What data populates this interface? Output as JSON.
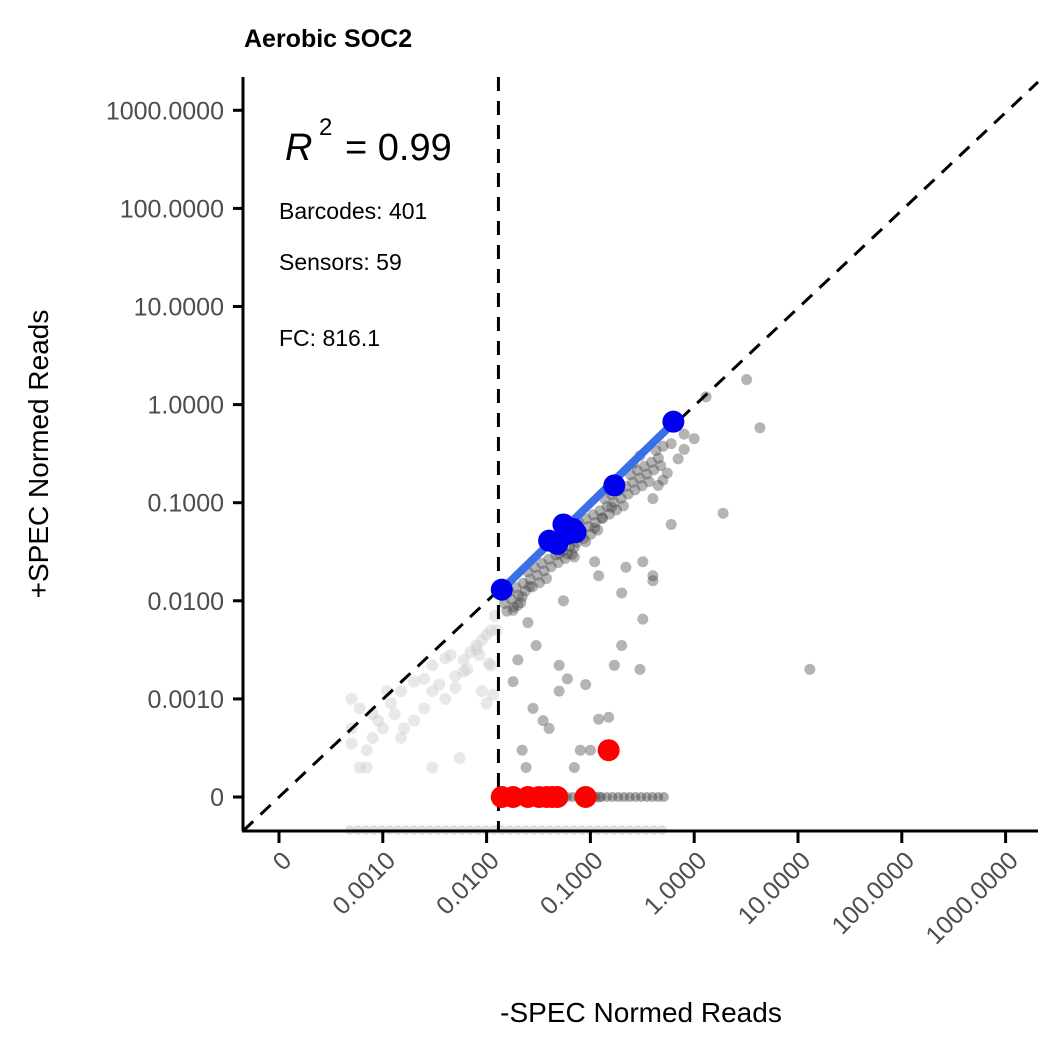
{
  "chart_data": {
    "type": "scatter",
    "title": "Aerobic SOC2",
    "xlabel": "-SPEC Normed Reads",
    "ylabel": "+SPEC Normed Reads",
    "x_scale": "pseudo-log10",
    "y_scale": "pseudo-log10",
    "x_ticks": [
      "0",
      "0.0010",
      "0.0100",
      "0.1000",
      "1.0000",
      "10.0000",
      "100.0000",
      "1000.0000"
    ],
    "y_ticks": [
      "0",
      "0.0010",
      "0.0100",
      "0.1000",
      "1.0000",
      "10.0000",
      "100.0000",
      "1000.0000"
    ],
    "annotations": {
      "r2_symbol": "R",
      "r2_exponent": "2",
      "r2_value": "= 0.99",
      "barcodes": "Barcodes: 401",
      "sensors": "Sensors: 59",
      "fc": "FC: 816.1"
    },
    "threshold_x": 0.013,
    "reference_line": "y = x",
    "colors": {
      "background_points": "#444444",
      "below_threshold_points": "#cccccc",
      "sensor_points": "#0000ee",
      "fit_line": "#3a6fe8",
      "zero_points": "#ff0000",
      "dashed_lines": "#000000"
    },
    "series": [
      {
        "role": "sensor_points",
        "x": [
          0.014,
          0.04,
          0.048,
          0.055,
          0.06,
          0.068,
          0.072,
          0.17,
          0.63
        ],
        "y": [
          0.013,
          0.041,
          0.038,
          0.06,
          0.048,
          0.054,
          0.05,
          0.15,
          0.67
        ]
      },
      {
        "role": "fit_line",
        "x": [
          0.014,
          0.63
        ],
        "y": [
          0.013,
          0.65
        ]
      },
      {
        "role": "zero_points",
        "x": [
          0.014,
          0.018,
          0.025,
          0.032,
          0.038,
          0.043,
          0.048,
          0.09,
          0.15
        ],
        "y": [
          0,
          0,
          0,
          0,
          0,
          0,
          0,
          0,
          0.0003
        ]
      },
      {
        "role": "background_points",
        "x": [
          3.2,
          4.3,
          1.3,
          0.6,
          0.8,
          0.26,
          0.5,
          0.3,
          0.6,
          1.9,
          0.4,
          0.2,
          0.4,
          0.11,
          0.12,
          0.055,
          0.22,
          0.32,
          0.32,
          0.025,
          0.03,
          0.05,
          0.05,
          0.06,
          0.09,
          0.15,
          0.02,
          0.018,
          0.028,
          0.035,
          0.04,
          0.07,
          0.17,
          0.12,
          0.2,
          0.08,
          0.1,
          0.1,
          0.3,
          13,
          0.022,
          0.024,
          0.03,
          0.4,
          0.45,
          0.55,
          0.7,
          0.8,
          1.0,
          0.06,
          0.07,
          0.09,
          0.11,
          0.13,
          0.16,
          0.018,
          0.02,
          0.022,
          0.026,
          0.05,
          0.07,
          0.05,
          0.12
        ],
        "y": [
          1.8,
          0.58,
          1.2,
          0.4,
          0.5,
          0.25,
          0.17,
          0.3,
          0.06,
          0.078,
          0.016,
          0.012,
          0.018,
          0.025,
          0.018,
          0.01,
          0.022,
          0.025,
          0.0065,
          0.006,
          0.0035,
          0.0022,
          0.0012,
          0.0016,
          0.0014,
          0.00065,
          0.0025,
          0.0015,
          0.0008,
          0.0006,
          0.0005,
          0.0002,
          0.0022,
          0.00062,
          0.0035,
          0.0003,
          0.0003,
          0.0001,
          0.002,
          0.002,
          0.0003,
          0.0002,
          0.0001,
          0.11,
          0.15,
          0.2,
          0.28,
          0.35,
          0.45,
          0.03,
          0.035,
          0.04,
          0.055,
          0.07,
          0.09,
          0.008,
          0.009,
          0.011,
          0.014,
          0.03,
          0.028,
          0,
          0
        ]
      },
      {
        "role": "below_threshold_points",
        "x": [
          0.0005,
          0.0006,
          0.0008,
          0.001,
          0.0012,
          0.0015,
          0.002,
          0.0025,
          0.003,
          0.0035,
          0.004,
          0.005,
          0.006,
          0.007,
          0.008,
          0.009,
          0.01,
          0.011,
          0.012,
          0.0005,
          0.0007,
          0.0009,
          0.0011,
          0.0013,
          0.0016,
          0.002,
          0.003,
          0.004,
          0.005,
          0.006,
          0.008,
          0.009,
          0.01,
          0.0115,
          0.0125,
          0.0006,
          0.0008,
          0.0015,
          0.0025,
          0.0045,
          0.0065,
          0.0085,
          0.0105,
          0.0005,
          0.0007,
          0.003,
          0.0055,
          0.011
        ],
        "y": [
          0.001,
          0.0008,
          0.0007,
          0.0005,
          0.0009,
          0.0004,
          0.0006,
          0.0008,
          0.0012,
          0.0014,
          0.001,
          0.0017,
          0.0025,
          0.003,
          0.0035,
          0.004,
          0.0045,
          0.005,
          0.007,
          0.00035,
          0.0003,
          0.0006,
          0.0012,
          0.0007,
          0.0005,
          0.0015,
          0.0022,
          0.0026,
          0.0013,
          0.0019,
          0.0032,
          0.0012,
          0.0009,
          0.0011,
          0.005,
          0.0002,
          0.0004,
          0.0012,
          0.0016,
          0.0028,
          0.002,
          0.0028,
          0.0023,
          0.0005,
          0.0002,
          0.0002,
          0.00025,
          0.0022
        ]
      }
    ]
  }
}
